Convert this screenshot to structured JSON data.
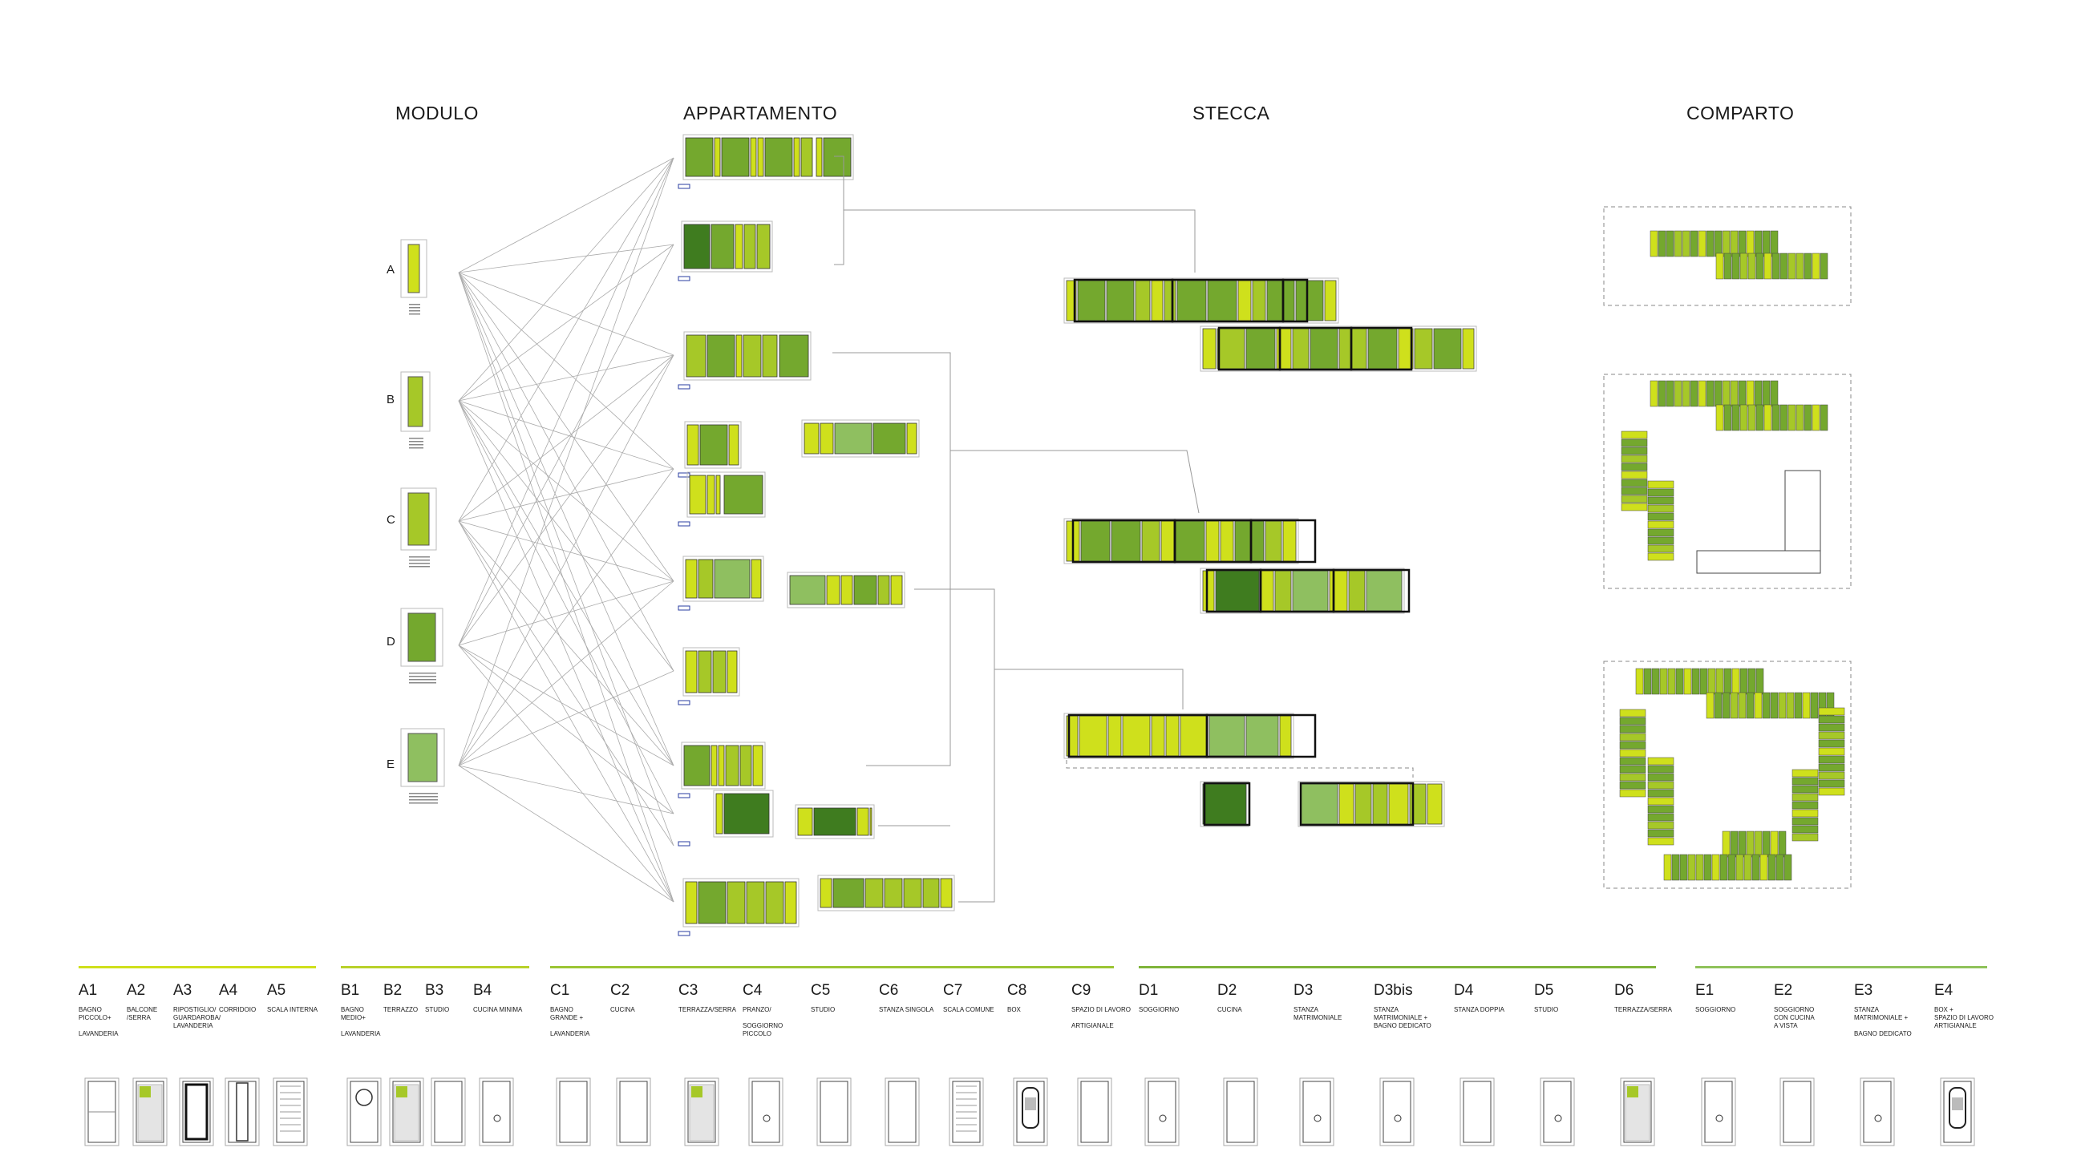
{
  "headers": {
    "modulo": "MODULO",
    "appartamento": "APPARTAMENTO",
    "stecca": "STECCA",
    "comparto": "COMPARTO"
  },
  "modules": [
    "A",
    "B",
    "C",
    "D",
    "E"
  ],
  "colors": {
    "yellow": "#cfe01c",
    "lime": "#a6c828",
    "green": "#74a82e",
    "dark": "#3f7c1f",
    "pale": "#8fbf60",
    "line": "#9a9a9a",
    "legend_a": "#cfe01c",
    "legend_b": "#b8d12a",
    "legend_c": "#9cc534",
    "legend_d": "#7fb43a",
    "legend_e": "#8fc25a"
  },
  "legend": [
    {
      "group": "A",
      "color": "#cfe01c",
      "items": [
        {
          "code": "A1",
          "desc": "BAGNO\nPICCOLO+\n\nLAVANDERIA",
          "icon": "bath"
        },
        {
          "code": "A2",
          "desc": "BALCONE\n/SERRA",
          "icon": "hatch"
        },
        {
          "code": "A3",
          "desc": "RIPOSTIGLIO/\nGUARDAROBA/\nLAVANDERIA",
          "icon": "frame"
        },
        {
          "code": "A4",
          "desc": "CORRIDOIO",
          "icon": "corridor"
        },
        {
          "code": "A5",
          "desc": "SCALA INTERNA",
          "icon": "stair"
        }
      ]
    },
    {
      "group": "B",
      "color": "#b8d12a",
      "items": [
        {
          "code": "B1",
          "desc": "BAGNO\nMEDIO+\n\nLAVANDERIA",
          "icon": "circle"
        },
        {
          "code": "B2",
          "desc": "TERRAZZO",
          "icon": "hatch"
        },
        {
          "code": "B3",
          "desc": "STUDIO",
          "icon": "plain"
        },
        {
          "code": "B4",
          "desc": "CUCINA MINIMA",
          "icon": "plant"
        }
      ]
    },
    {
      "group": "C",
      "color": "#9cc534",
      "items": [
        {
          "code": "C1",
          "desc": "BAGNO\nGRANDE +\n\nLAVANDERIA",
          "icon": "plain"
        },
        {
          "code": "C2",
          "desc": "CUCINA",
          "icon": "plain"
        },
        {
          "code": "C3",
          "desc": "TERRAZZA/SERRA",
          "icon": "hatch"
        },
        {
          "code": "C4",
          "desc": "PRANZO/\n\nSOGGIORNO\nPICCOLO",
          "icon": "plant"
        },
        {
          "code": "C5",
          "desc": "STUDIO",
          "icon": "plain"
        },
        {
          "code": "C6",
          "desc": "STANZA SINGOLA",
          "icon": "plain"
        },
        {
          "code": "C7",
          "desc": "SCALA COMUNE",
          "icon": "stair"
        },
        {
          "code": "C8",
          "desc": "BOX",
          "icon": "car"
        },
        {
          "code": "C9",
          "desc": "SPAZIO DI LAVORO\n\nARTIGIANALE",
          "icon": "plain"
        }
      ]
    },
    {
      "group": "D",
      "color": "#7fb43a",
      "items": [
        {
          "code": "D1",
          "desc": "SOGGIORNO",
          "icon": "plant"
        },
        {
          "code": "D2",
          "desc": "CUCINA",
          "icon": "plain"
        },
        {
          "code": "D3",
          "desc": "STANZA\nMATRIMONIALE",
          "icon": "plant"
        },
        {
          "code": "D3bis",
          "desc": "STANZA\nMATRIMONIALE +\nBAGNO DEDICATO",
          "icon": "plant"
        },
        {
          "code": "D4",
          "desc": "STANZA DOPPIA",
          "icon": "plain"
        },
        {
          "code": "D5",
          "desc": "STUDIO",
          "icon": "plant"
        },
        {
          "code": "D6",
          "desc": "TERRAZZA/SERRA",
          "icon": "hatch"
        }
      ]
    },
    {
      "group": "E",
      "color": "#8fc25a",
      "items": [
        {
          "code": "E1",
          "desc": "SOGGIORNO",
          "icon": "plant"
        },
        {
          "code": "E2",
          "desc": "SOGGIORNO\nCON CUCINA\nA VISTA",
          "icon": "plain"
        },
        {
          "code": "E3",
          "desc": "STANZA\nMATRIMONIALE +\n\nBAGNO DEDICATO",
          "icon": "plant"
        },
        {
          "code": "E4",
          "desc": "BOX +\nSPAZIO DI LAVORO\nARTIGIANALE",
          "icon": "car"
        }
      ]
    }
  ]
}
